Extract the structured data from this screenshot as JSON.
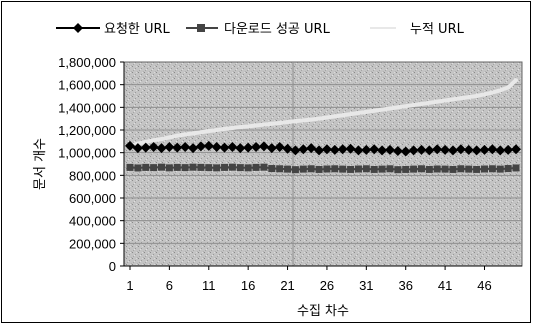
{
  "chart_data": {
    "type": "line",
    "title": "",
    "xlabel": "수집 차수",
    "ylabel": "문서 개수",
    "ylim": [
      0,
      1800000
    ],
    "yticks": [
      "0",
      "200,000",
      "400,000",
      "600,000",
      "800,000",
      "1,000,000",
      "1,200,000",
      "1,400,000",
      "1,600,000",
      "1,800,000"
    ],
    "xticks": [
      "1",
      "6",
      "11",
      "16",
      "21",
      "26",
      "31",
      "36",
      "41",
      "46"
    ],
    "x_start": 1,
    "x_end": 50,
    "legend_position": "top",
    "grid": true,
    "series": [
      {
        "name": "요청한 URL",
        "color": "#000000",
        "marker": "diamond",
        "values": [
          1060000,
          1040000,
          1045000,
          1050000,
          1040000,
          1050000,
          1045000,
          1050000,
          1040000,
          1055000,
          1060000,
          1050000,
          1045000,
          1050000,
          1040000,
          1045000,
          1050000,
          1055000,
          1040000,
          1050000,
          1035000,
          1020000,
          1030000,
          1040000,
          1020000,
          1030000,
          1025000,
          1030000,
          1035000,
          1020000,
          1025000,
          1030000,
          1020000,
          1025000,
          1015000,
          1010000,
          1020000,
          1025000,
          1020000,
          1030000,
          1025000,
          1020000,
          1030000,
          1025000,
          1020000,
          1025000,
          1030000,
          1020000,
          1025000,
          1030000
        ]
      },
      {
        "name": "다운로드 성공 URL",
        "color": "#444444",
        "marker": "square",
        "values": [
          870000,
          865000,
          870000,
          868000,
          872000,
          866000,
          870000,
          868000,
          872000,
          870000,
          868000,
          866000,
          870000,
          872000,
          868000,
          866000,
          870000,
          872000,
          860000,
          858000,
          855000,
          850000,
          855000,
          858000,
          852000,
          856000,
          858000,
          855000,
          852000,
          856000,
          858000,
          852000,
          855000,
          858000,
          850000,
          852000,
          855000,
          858000,
          852000,
          856000,
          855000,
          852000,
          858000,
          855000,
          852000,
          856000,
          858000,
          855000,
          860000,
          865000
        ]
      },
      {
        "name": "누적 URL",
        "color": "#e8e8e8",
        "marker": "dot",
        "values": [
          1060000,
          1080000,
          1095000,
          1110000,
          1120000,
          1135000,
          1150000,
          1160000,
          1170000,
          1180000,
          1190000,
          1200000,
          1210000,
          1218000,
          1225000,
          1232000,
          1240000,
          1248000,
          1255000,
          1262000,
          1270000,
          1278000,
          1285000,
          1292000,
          1300000,
          1310000,
          1320000,
          1330000,
          1340000,
          1350000,
          1360000,
          1370000,
          1380000,
          1390000,
          1400000,
          1410000,
          1420000,
          1430000,
          1440000,
          1450000,
          1460000,
          1470000,
          1480000,
          1490000,
          1500000,
          1515000,
          1530000,
          1550000,
          1575000,
          1640000
        ]
      }
    ]
  }
}
